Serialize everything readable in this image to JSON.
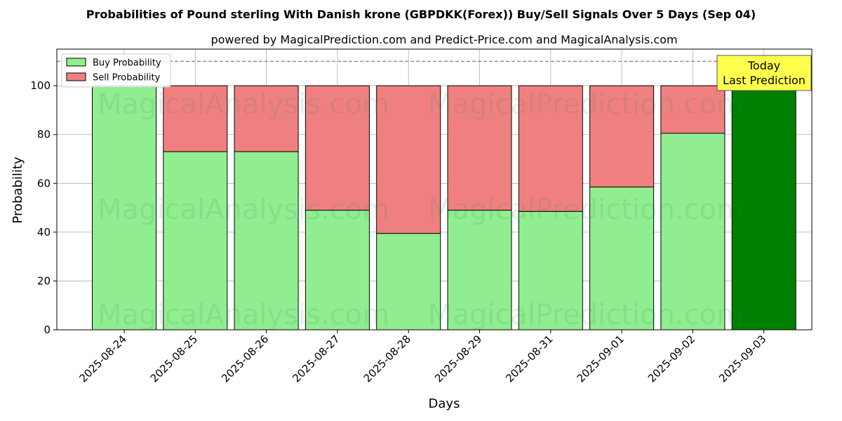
{
  "chart_data": {
    "type": "bar",
    "stacked": true,
    "title": "Probabilities of Pound sterling With Danish krone (GBPDKK(Forex)) Buy/Sell Signals Over 5 Days (Sep 04)",
    "subtitle": "powered by MagicalPrediction.com and Predict-Price.com and MagicalAnalysis.com",
    "xlabel": "Days",
    "ylabel": "Probability",
    "ylim": [
      0,
      115
    ],
    "yticks": [
      0,
      20,
      40,
      60,
      80,
      100
    ],
    "grid": true,
    "legend_position": "top-left",
    "reference_line": 110,
    "categories": [
      "2025-08-24",
      "2025-08-25",
      "2025-08-26",
      "2025-08-27",
      "2025-08-28",
      "2025-08-29",
      "2025-08-31",
      "2025-09-01",
      "2025-09-02",
      "2025-09-03"
    ],
    "series": [
      {
        "name": "Buy Probability",
        "color": "#90ee90",
        "values": [
          100,
          73,
          73,
          49,
          39.5,
          49,
          48.5,
          58.5,
          80.5,
          100
        ]
      },
      {
        "name": "Sell Probability",
        "color": "#f08080",
        "values": [
          0,
          27,
          27,
          51,
          60.5,
          51,
          51.5,
          41.5,
          19.5,
          0
        ]
      }
    ],
    "highlight": {
      "index": 9,
      "color": "#008000"
    },
    "annotation": {
      "lines": [
        "Today",
        "Last Prediction"
      ],
      "background": "#ffff4d"
    },
    "watermarks": [
      "MagicalAnalysis.com",
      "MagicalPrediction.com"
    ]
  }
}
